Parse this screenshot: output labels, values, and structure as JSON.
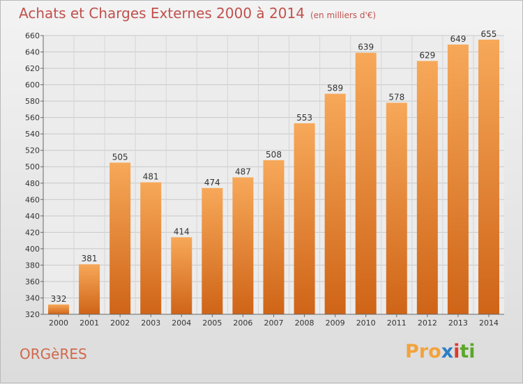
{
  "title": "Achats et Charges Externes 2000 à 2014",
  "unit_note": "(en milliers d'€)",
  "commune": "ORGèRES",
  "logo": {
    "text": "Proxiti",
    "letters": [
      "P",
      "r",
      "o",
      "x",
      "i",
      "t",
      "i"
    ],
    "colors": [
      "#f2a33c",
      "#f2a33c",
      "#f2a33c",
      "#2b7fc4",
      "#e0392b",
      "#5aa82a",
      "#5aa82a"
    ]
  },
  "colors": {
    "bar_top": "#f7a859",
    "bar_bottom": "#cf6417",
    "title": "#c0504d"
  },
  "chart_data": {
    "type": "bar",
    "categories": [
      "2000",
      "2001",
      "2002",
      "2003",
      "2004",
      "2005",
      "2006",
      "2007",
      "2008",
      "2009",
      "2010",
      "2011",
      "2012",
      "2013",
      "2014"
    ],
    "values": [
      332,
      381,
      505,
      481,
      414,
      474,
      487,
      508,
      553,
      589,
      639,
      578,
      629,
      649,
      655
    ],
    "data_labels": [
      "332",
      "381",
      "505",
      "481",
      "414",
      "474",
      "487",
      "508",
      "553",
      "589",
      "639",
      "578",
      "629",
      "649",
      "655"
    ],
    "ylim": [
      320,
      660
    ],
    "yticks": [
      320,
      340,
      360,
      380,
      400,
      420,
      440,
      460,
      480,
      500,
      520,
      540,
      560,
      580,
      600,
      620,
      640,
      660
    ],
    "grid": true,
    "legend": "none"
  }
}
